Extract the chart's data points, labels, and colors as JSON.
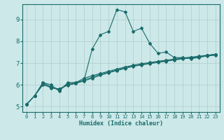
{
  "xlabel": "Humidex (Indice chaleur)",
  "bg_color": "#cce8e8",
  "grid_color": "#b0cccc",
  "line_color": "#1a6b6b",
  "xlim": [
    -0.5,
    23.5
  ],
  "ylim": [
    4.75,
    9.7
  ],
  "yticks": [
    5,
    6,
    7,
    8,
    9
  ],
  "xticks": [
    0,
    1,
    2,
    3,
    4,
    5,
    6,
    7,
    8,
    9,
    10,
    11,
    12,
    13,
    14,
    15,
    16,
    17,
    18,
    19,
    20,
    21,
    22,
    23
  ],
  "series": [
    [
      5.1,
      5.5,
      6.1,
      6.0,
      5.7,
      6.1,
      6.1,
      6.2,
      7.65,
      8.3,
      8.45,
      9.45,
      9.35,
      8.45,
      8.6,
      7.9,
      7.45,
      7.5,
      7.25,
      7.25,
      7.2,
      7.25,
      7.35,
      7.4
    ],
    [
      5.1,
      5.5,
      6.1,
      5.9,
      5.75,
      6.05,
      6.1,
      6.3,
      6.42,
      6.52,
      6.62,
      6.72,
      6.82,
      6.9,
      6.97,
      7.02,
      7.08,
      7.13,
      7.18,
      7.23,
      7.27,
      7.31,
      7.36,
      7.4
    ],
    [
      5.1,
      5.5,
      6.05,
      5.85,
      5.82,
      6.0,
      6.08,
      6.22,
      6.35,
      6.48,
      6.58,
      6.68,
      6.78,
      6.87,
      6.93,
      6.99,
      7.05,
      7.1,
      7.16,
      7.21,
      7.25,
      7.29,
      7.34,
      7.38
    ],
    [
      5.1,
      5.5,
      6.0,
      5.88,
      5.8,
      5.98,
      6.06,
      6.18,
      6.3,
      6.44,
      6.55,
      6.65,
      6.75,
      6.85,
      6.91,
      6.97,
      7.03,
      7.08,
      7.14,
      7.19,
      7.23,
      7.27,
      7.32,
      7.36
    ]
  ],
  "marker": "D",
  "markersize": 2.0,
  "linewidth": 0.8,
  "tick_fontsize_x": 5.0,
  "tick_fontsize_y": 6.5,
  "xlabel_fontsize": 6.0
}
